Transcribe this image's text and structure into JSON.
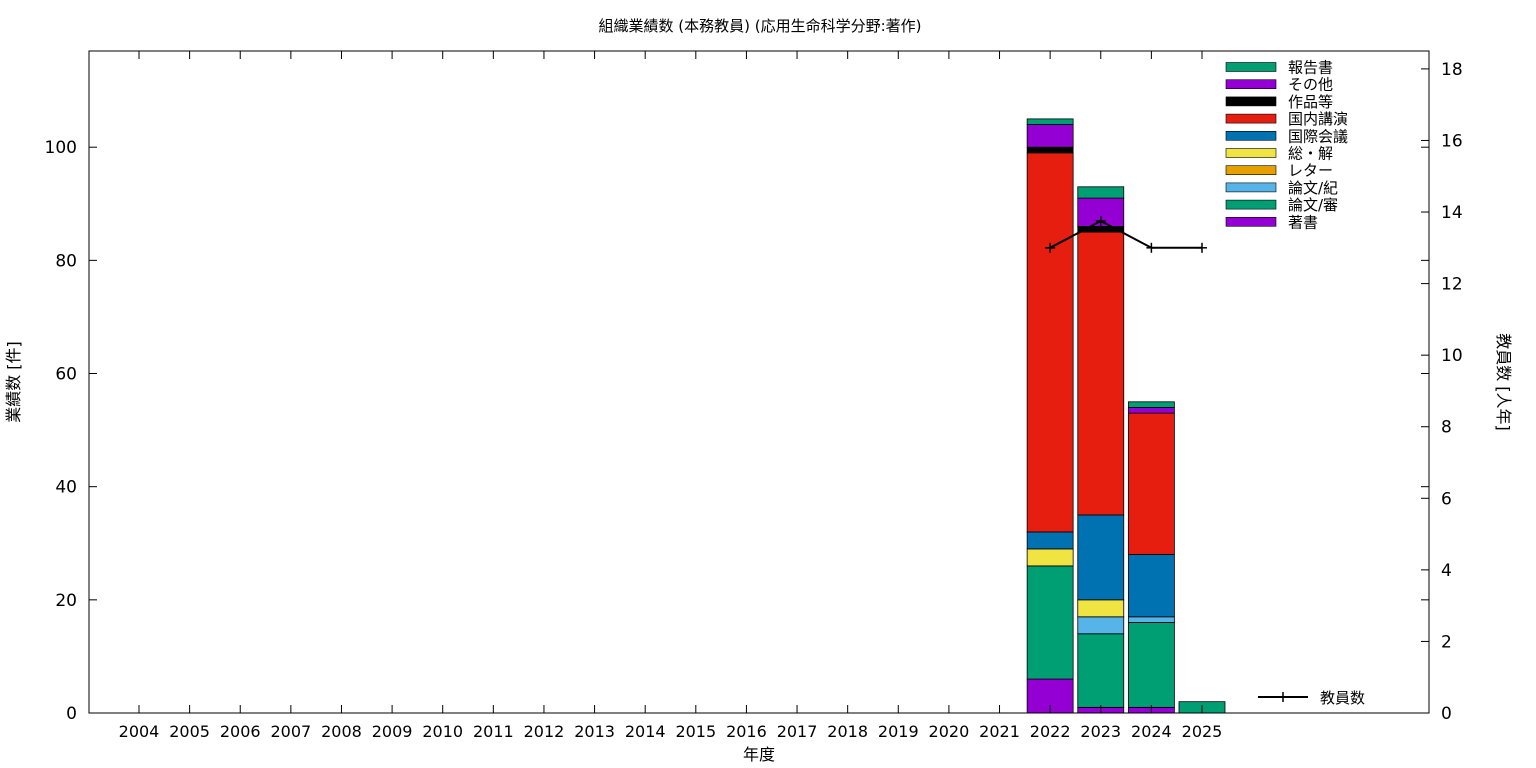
{
  "chart_data": {
    "type": "bar",
    "title": "組織業績数 (本務教員) (応用生命科学分野:著作)",
    "xlabel": "年度",
    "ylabel": "業績数 [件]",
    "y2label": "教員数 [人年]",
    "ylim": [
      0,
      117
    ],
    "y2lim": [
      0,
      18.5
    ],
    "yticks": [
      0,
      20,
      40,
      60,
      80,
      100
    ],
    "y2ticks": [
      0,
      2,
      4,
      6,
      8,
      10,
      12,
      14,
      16,
      18
    ],
    "grid": false,
    "legend_position": "top-right",
    "categories": [
      "2004",
      "2005",
      "2006",
      "2007",
      "2008",
      "2009",
      "2010",
      "2011",
      "2012",
      "2013",
      "2014",
      "2015",
      "2016",
      "2017",
      "2018",
      "2019",
      "2020",
      "2021",
      "2022",
      "2023",
      "2024",
      "2025"
    ],
    "series": [
      {
        "name": "著書",
        "color": "#9400d3",
        "values": [
          0,
          0,
          0,
          0,
          0,
          0,
          0,
          0,
          0,
          0,
          0,
          0,
          0,
          0,
          0,
          0,
          0,
          0,
          6,
          1,
          1,
          0
        ]
      },
      {
        "name": "論文/審",
        "color": "#009e73",
        "values": [
          0,
          0,
          0,
          0,
          0,
          0,
          0,
          0,
          0,
          0,
          0,
          0,
          0,
          0,
          0,
          0,
          0,
          0,
          20,
          13,
          15,
          2
        ]
      },
      {
        "name": "論文/紀",
        "color": "#56b4e9",
        "values": [
          0,
          0,
          0,
          0,
          0,
          0,
          0,
          0,
          0,
          0,
          0,
          0,
          0,
          0,
          0,
          0,
          0,
          0,
          0,
          3,
          1,
          0
        ]
      },
      {
        "name": "レター",
        "color": "#e69f00",
        "values": [
          0,
          0,
          0,
          0,
          0,
          0,
          0,
          0,
          0,
          0,
          0,
          0,
          0,
          0,
          0,
          0,
          0,
          0,
          0,
          0,
          0,
          0
        ]
      },
      {
        "name": "総・解",
        "color": "#f0e442",
        "values": [
          0,
          0,
          0,
          0,
          0,
          0,
          0,
          0,
          0,
          0,
          0,
          0,
          0,
          0,
          0,
          0,
          0,
          0,
          3,
          3,
          0,
          0
        ]
      },
      {
        "name": "国際会議",
        "color": "#0072b2",
        "values": [
          0,
          0,
          0,
          0,
          0,
          0,
          0,
          0,
          0,
          0,
          0,
          0,
          0,
          0,
          0,
          0,
          0,
          0,
          3,
          15,
          11,
          0
        ]
      },
      {
        "name": "国内講演",
        "color": "#e51e10",
        "values": [
          0,
          0,
          0,
          0,
          0,
          0,
          0,
          0,
          0,
          0,
          0,
          0,
          0,
          0,
          0,
          0,
          0,
          0,
          67,
          50,
          25,
          0
        ]
      },
      {
        "name": "作品等",
        "color": "#000000",
        "values": [
          0,
          0,
          0,
          0,
          0,
          0,
          0,
          0,
          0,
          0,
          0,
          0,
          0,
          0,
          0,
          0,
          0,
          0,
          1,
          1,
          0,
          0
        ]
      },
      {
        "name": "その他",
        "color": "#9400d3",
        "values": [
          0,
          0,
          0,
          0,
          0,
          0,
          0,
          0,
          0,
          0,
          0,
          0,
          0,
          0,
          0,
          0,
          0,
          0,
          4,
          5,
          1,
          0
        ]
      },
      {
        "name": "報告書",
        "color": "#009e73",
        "values": [
          0,
          0,
          0,
          0,
          0,
          0,
          0,
          0,
          0,
          0,
          0,
          0,
          0,
          0,
          0,
          0,
          0,
          0,
          1,
          2,
          1,
          0
        ]
      }
    ],
    "line_series": {
      "name": "教員数",
      "axis": "y2",
      "color": "#000000",
      "x": [
        "2022",
        "2023",
        "2024",
        "2025"
      ],
      "values": [
        13,
        13.75,
        13,
        13
      ]
    }
  }
}
